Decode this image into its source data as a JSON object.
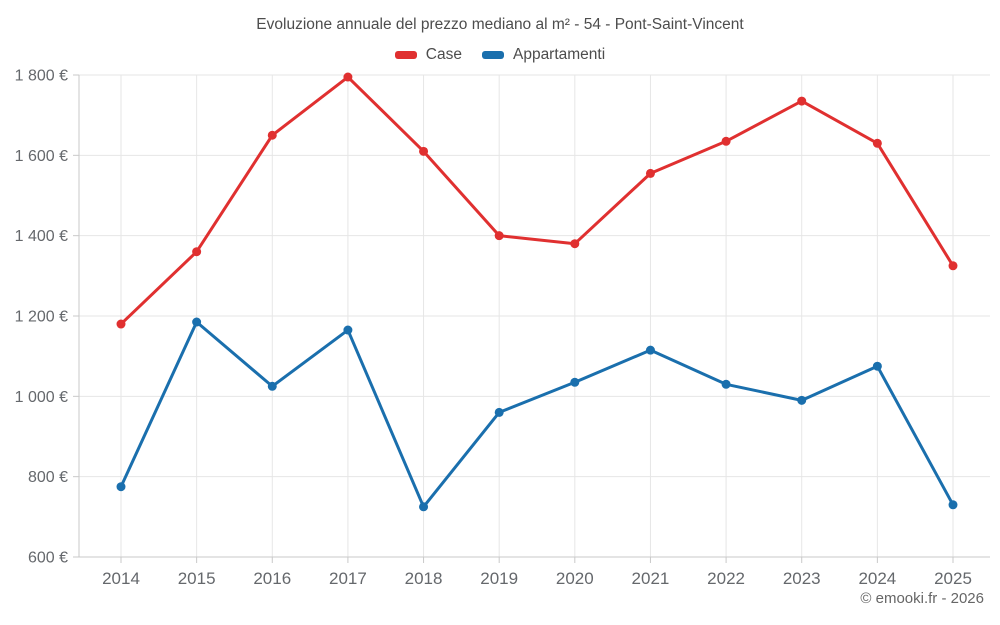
{
  "header": {
    "title": "Evoluzione annuale del prezzo mediano al m² - 54 - Pont-Saint-Vincent"
  },
  "legend": {
    "items": [
      {
        "label": "Case",
        "color": "#e03030"
      },
      {
        "label": "Appartamenti",
        "color": "#1a6fad"
      }
    ]
  },
  "footer": {
    "credit": "© emooki.fr - 2026"
  },
  "chart_data": {
    "type": "line",
    "title": "Evoluzione annuale del prezzo mediano al m² - 54 - Pont-Saint-Vincent",
    "xlabel": "",
    "ylabel": "",
    "categories": [
      "2014",
      "2015",
      "2016",
      "2017",
      "2018",
      "2019",
      "2020",
      "2021",
      "2022",
      "2023",
      "2024",
      "2025"
    ],
    "series": [
      {
        "name": "Case",
        "color": "#e03030",
        "values": [
          1180,
          1360,
          1650,
          1795,
          1610,
          1400,
          1380,
          1555,
          1635,
          1735,
          1630,
          1325
        ]
      },
      {
        "name": "Appartamenti",
        "color": "#1a6fad",
        "values": [
          775,
          1185,
          1025,
          1165,
          725,
          960,
          1035,
          1115,
          1030,
          990,
          1075,
          730
        ]
      }
    ],
    "ylim": [
      600,
      1800
    ],
    "ytick_step": 200,
    "ytick_labels": [
      "1 800 €",
      "1 600 €",
      "1 400 €",
      "1 200 €",
      "1 000 €",
      "800 €",
      "600 €"
    ],
    "currency_suffix": "€",
    "grid": true,
    "legend_position": "top"
  }
}
